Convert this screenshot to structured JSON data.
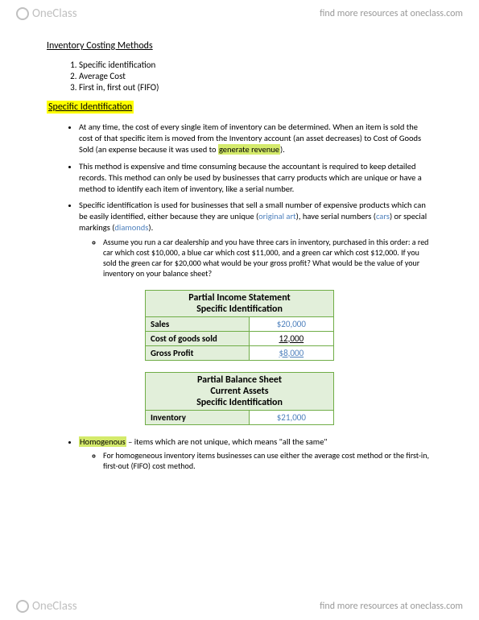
{
  "header": {
    "logo_text": "OneClass",
    "link_text": "find more resources at oneclass.com"
  },
  "footer": {
    "logo_text": "OneClass",
    "link_text": "find more resources at oneclass.com"
  },
  "title": "Inventory Costing Methods",
  "methods_list": [
    "Specific identification",
    "Average Cost",
    "First in, first out (FIFO)"
  ],
  "section_heading": "Specific Identification",
  "bullet1_a": "At any time, the cost of every single item of inventory can be determined.  When an item is sold the cost of that specific item is moved from the Inventory account (an asset decreases) to Cost of Goods Sold (an expense because it was used to ",
  "bullet1_hl": "generate revenue",
  "bullet1_b": ").",
  "bullet2": "This method is expensive and time consuming because the accountant is required to keep detailed records. This method can only be used by businesses that carry products which are unique or have a method to identify each item of inventory, like a serial number.",
  "bullet3_a": "Specific identification is used for businesses that sell a small number of expensive products which can be easily identified, either because they are unique (",
  "bullet3_b": "original art",
  "bullet3_c": "), have serial numbers (",
  "bullet3_d": "cars",
  "bullet3_e": ") or special markings (",
  "bullet3_f": "diamonds",
  "bullet3_g": ").",
  "sub_bullet3": "Assume you run a car dealership and you have three cars in inventory, purchased in this order:  a red car which cost $10,000, a blue car which cost $11,000, and a green car which cost $12,000. If you sold the green car for $20,000 what would be your gross profit?  What would be the value of your inventory on your balance sheet?",
  "income_table": {
    "title1": "Partial Income Statement",
    "title2": "Specific Identification",
    "rows": [
      {
        "label": "Sales",
        "value": "$20,000",
        "style": "blue"
      },
      {
        "label": "Cost of goods sold",
        "value": "12,000",
        "style": "underline"
      },
      {
        "label": "Gross Profit",
        "value": "$8,000",
        "style": "blue underline"
      }
    ]
  },
  "balance_table": {
    "title1": "Partial Balance Sheet",
    "title2": "Current Assets",
    "title3": "Specific Identification",
    "rows": [
      {
        "label": "Inventory",
        "value": "$21,000",
        "style": "blue"
      }
    ]
  },
  "bullet4_a": "Homogenous",
  "bullet4_b": " – items which are not unique, which means \"all the same\"",
  "sub_bullet4": "For homogeneous inventory items businesses can use either the average cost method or the first-in, first-out (FIFO) cost method."
}
